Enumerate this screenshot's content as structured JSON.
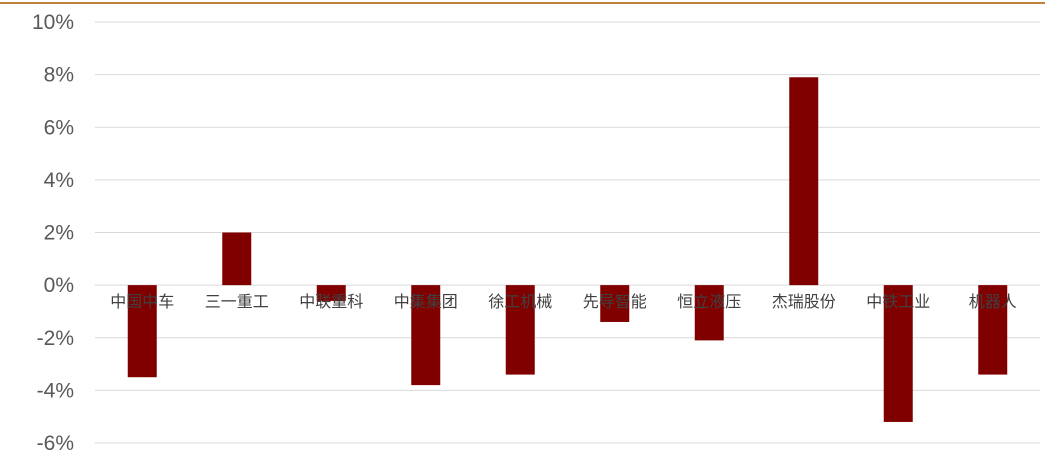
{
  "chart_data": {
    "type": "bar",
    "title": "",
    "xlabel": "",
    "ylabel": "",
    "categories": [
      "中国中车",
      "三一重工",
      "中联重科",
      "中集集团",
      "徐工机械",
      "先导智能",
      "恒立液压",
      "杰瑞股份",
      "中铁工业",
      "机器人"
    ],
    "values": [
      -3.5,
      2.0,
      -0.6,
      -3.8,
      -3.4,
      -1.4,
      -2.1,
      7.9,
      -5.2,
      -3.4
    ],
    "ylim": [
      -6,
      10
    ],
    "yticks": [
      10,
      8,
      6,
      4,
      2,
      0,
      -2,
      -4,
      -6
    ],
    "ytick_labels": [
      "10%",
      "8%",
      "6%",
      "4%",
      "2%",
      "0%",
      "-2%",
      "-4%",
      "-6%"
    ],
    "grid": true,
    "legend": "none",
    "colors": {
      "bar": "#800000",
      "grid": "#d9d9d9",
      "top_rule": "#c0823a"
    }
  }
}
